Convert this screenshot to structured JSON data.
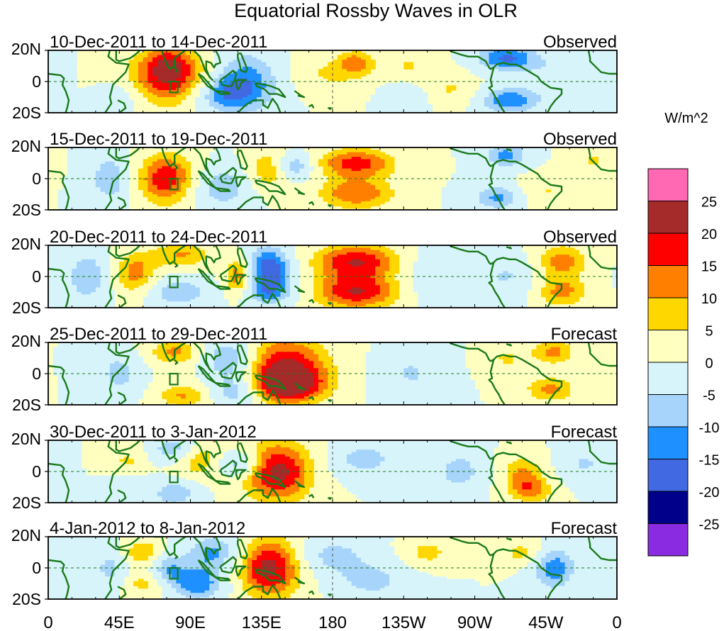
{
  "title": "Equatorial Rossby Waves in OLR",
  "units": "W/m^2",
  "latitude_labels": [
    "20N",
    "0",
    "20S"
  ],
  "longitude_labels": [
    "0",
    "45E",
    "90E",
    "135E",
    "180",
    "135W",
    "90W",
    "45W",
    "0"
  ],
  "panels": [
    {
      "date_range": "10-Dec-2011 to 14-Dec-2011",
      "status": "Observed"
    },
    {
      "date_range": "15-Dec-2011 to 19-Dec-2011",
      "status": "Observed"
    },
    {
      "date_range": "20-Dec-2011 to 24-Dec-2011",
      "status": "Observed"
    },
    {
      "date_range": "25-Dec-2011 to 29-Dec-2011",
      "status": "Forecast"
    },
    {
      "date_range": "30-Dec-2011 to 3-Jan-2012",
      "status": "Forecast"
    },
    {
      "date_range": "4-Jan-2012 to 8-Jan-2012",
      "status": "Forecast"
    }
  ],
  "colorbar": {
    "colors": [
      "#ff69b4",
      "#a52a2a",
      "#ff0000",
      "#ff7f00",
      "#ffd700",
      "#ffffc0",
      "#d8f4fb",
      "#a6d4fb",
      "#1e90ff",
      "#4169e1",
      "#00008b",
      "#8a2be2"
    ],
    "labels": [
      "25",
      "20",
      "15",
      "10",
      "5",
      "0",
      "-5",
      "-10",
      "-15",
      "-20",
      "-25"
    ]
  },
  "palette": {
    "p25": "#a52a2a",
    "p20": "#ff0000",
    "p15": "#ff7f00",
    "p10": "#ffd700",
    "p5": "#ffffc0",
    "n5": "#d8f4fb",
    "n10": "#a6d4fb",
    "n15": "#1e90ff",
    "n20": "#4169e1",
    "n25": "#00008b",
    "coast": "#1a7a1a",
    "box": "#1a7a1a",
    "equator": "#1a7a1a"
  },
  "blobs": [
    [
      {
        "lon": 80,
        "lat": 2,
        "rlon": 22,
        "rlat": 13,
        "v": 22
      },
      {
        "lon": 75,
        "lat": 12,
        "rlon": 10,
        "rlat": 8,
        "v": 10
      },
      {
        "lon": 122,
        "lat": 0,
        "rlon": 18,
        "rlat": 14,
        "v": -18
      },
      {
        "lon": 108,
        "lat": -8,
        "rlon": 14,
        "rlat": 8,
        "v": -12
      },
      {
        "lon": 175,
        "lat": 5,
        "rlon": 18,
        "rlat": 10,
        "v": 8
      },
      {
        "lon": 195,
        "lat": 12,
        "rlon": 8,
        "rlat": 6,
        "v": 13
      },
      {
        "lon": 228,
        "lat": 10,
        "rlon": 12,
        "rlat": 8,
        "v": 8
      },
      {
        "lon": 226,
        "lat": -10,
        "rlon": 10,
        "rlat": 8,
        "v": -8
      },
      {
        "lon": 255,
        "lat": -5,
        "rlon": 12,
        "rlat": 8,
        "v": 8
      },
      {
        "lon": 290,
        "lat": 15,
        "rlon": 14,
        "rlat": 6,
        "v": -18
      },
      {
        "lon": 292,
        "lat": -12,
        "rlon": 14,
        "rlat": 6,
        "v": -16
      },
      {
        "lon": 330,
        "lat": 5,
        "rlon": 20,
        "rlat": 10,
        "v": -7
      },
      {
        "lon": 45,
        "lat": -10,
        "rlon": 10,
        "rlat": 8,
        "v": -8
      }
    ],
    [
      {
        "lon": 75,
        "lat": 0,
        "rlon": 14,
        "rlat": 12,
        "v": 22
      },
      {
        "lon": 40,
        "lat": 0,
        "rlon": 10,
        "rlat": 12,
        "v": -12
      },
      {
        "lon": 110,
        "lat": -5,
        "rlon": 16,
        "rlat": 10,
        "v": -12
      },
      {
        "lon": 138,
        "lat": 5,
        "rlon": 10,
        "rlat": 10,
        "v": 13
      },
      {
        "lon": 156,
        "lat": 8,
        "rlon": 8,
        "rlat": 6,
        "v": -14
      },
      {
        "lon": 195,
        "lat": 10,
        "rlon": 18,
        "rlat": 7,
        "v": 20
      },
      {
        "lon": 195,
        "lat": -10,
        "rlon": 18,
        "rlat": 7,
        "v": 17
      },
      {
        "lon": 290,
        "lat": 15,
        "rlon": 10,
        "rlat": 6,
        "v": -14
      },
      {
        "lon": 285,
        "lat": -12,
        "rlon": 12,
        "rlat": 6,
        "v": -14
      },
      {
        "lon": 315,
        "lat": -8,
        "rlon": 14,
        "rlat": 8,
        "v": 8
      },
      {
        "lon": 345,
        "lat": 12,
        "rlon": 10,
        "rlat": 8,
        "v": 8
      }
    ],
    [
      {
        "lon": 55,
        "lat": 2,
        "rlon": 10,
        "rlat": 10,
        "v": 15
      },
      {
        "lon": 25,
        "lat": 0,
        "rlon": 10,
        "rlat": 12,
        "v": -12
      },
      {
        "lon": 85,
        "lat": 14,
        "rlon": 14,
        "rlat": 6,
        "v": 13
      },
      {
        "lon": 82,
        "lat": -10,
        "rlon": 14,
        "rlat": 7,
        "v": -12
      },
      {
        "lon": 120,
        "lat": 0,
        "rlon": 6,
        "rlat": 8,
        "v": 18
      },
      {
        "lon": 140,
        "lat": 5,
        "rlon": 10,
        "rlat": 10,
        "v": -22
      },
      {
        "lon": 140,
        "lat": -10,
        "rlon": 12,
        "rlat": 6,
        "v": -12
      },
      {
        "lon": 195,
        "lat": 10,
        "rlon": 20,
        "rlat": 8,
        "v": 22
      },
      {
        "lon": 195,
        "lat": -10,
        "rlon": 20,
        "rlat": 8,
        "v": 22
      },
      {
        "lon": 245,
        "lat": 0,
        "rlon": 14,
        "rlat": 12,
        "v": -8
      },
      {
        "lon": 325,
        "lat": 10,
        "rlon": 12,
        "rlat": 8,
        "v": 15
      },
      {
        "lon": 325,
        "lat": -10,
        "rlon": 12,
        "rlat": 7,
        "v": 14
      },
      {
        "lon": 290,
        "lat": 0,
        "rlon": 14,
        "rlat": 10,
        "v": -8
      }
    ],
    [
      {
        "lon": 150,
        "lat": 5,
        "rlon": 20,
        "rlat": 14,
        "v": 22
      },
      {
        "lon": 150,
        "lat": -8,
        "rlon": 18,
        "rlat": 8,
        "v": 20
      },
      {
        "lon": 80,
        "lat": 14,
        "rlon": 12,
        "rlat": 6,
        "v": 14
      },
      {
        "lon": 85,
        "lat": -14,
        "rlon": 12,
        "rlat": 6,
        "v": 13
      },
      {
        "lon": 115,
        "lat": 10,
        "rlon": 12,
        "rlat": 8,
        "v": -16
      },
      {
        "lon": 120,
        "lat": -10,
        "rlon": 12,
        "rlat": 8,
        "v": -16
      },
      {
        "lon": 320,
        "lat": 14,
        "rlon": 10,
        "rlat": 6,
        "v": 14
      },
      {
        "lon": 318,
        "lat": -10,
        "rlon": 12,
        "rlat": 6,
        "v": 14
      },
      {
        "lon": 45,
        "lat": 0,
        "rlon": 10,
        "rlat": 10,
        "v": -10
      },
      {
        "lon": 230,
        "lat": 0,
        "rlon": 14,
        "rlat": 12,
        "v": -8
      },
      {
        "lon": 290,
        "lat": 10,
        "rlon": 10,
        "rlat": 8,
        "v": 8
      }
    ],
    [
      {
        "lon": 145,
        "lat": 0,
        "rlon": 16,
        "rlat": 14,
        "v": 25
      },
      {
        "lon": 95,
        "lat": 8,
        "rlon": 12,
        "rlat": 8,
        "v": 13
      },
      {
        "lon": 120,
        "lat": 5,
        "rlon": 10,
        "rlat": 6,
        "v": -16
      },
      {
        "lon": 80,
        "lat": 14,
        "rlon": 10,
        "rlat": 6,
        "v": -14
      },
      {
        "lon": 80,
        "lat": -14,
        "rlon": 10,
        "rlat": 6,
        "v": -12
      },
      {
        "lon": 50,
        "lat": 5,
        "rlon": 8,
        "rlat": 8,
        "v": 10
      },
      {
        "lon": 50,
        "lat": -8,
        "rlon": 8,
        "rlat": 8,
        "v": -8
      },
      {
        "lon": 200,
        "lat": 8,
        "rlon": 16,
        "rlat": 8,
        "v": -10
      },
      {
        "lon": 260,
        "lat": 0,
        "rlon": 12,
        "rlat": 10,
        "v": -10
      },
      {
        "lon": 300,
        "lat": 0,
        "rlon": 10,
        "rlat": 8,
        "v": 12
      },
      {
        "lon": 305,
        "lat": -12,
        "rlon": 10,
        "rlat": 6,
        "v": 14
      },
      {
        "lon": 340,
        "lat": 5,
        "rlon": 12,
        "rlat": 8,
        "v": -8
      }
    ],
    [
      {
        "lon": 140,
        "lat": 0,
        "rlon": 14,
        "rlat": 14,
        "v": 25
      },
      {
        "lon": 105,
        "lat": 10,
        "rlon": 12,
        "rlat": 8,
        "v": -14
      },
      {
        "lon": 95,
        "lat": -10,
        "rlon": 12,
        "rlat": 8,
        "v": -16
      },
      {
        "lon": 60,
        "lat": 10,
        "rlon": 10,
        "rlat": 6,
        "v": 13
      },
      {
        "lon": 60,
        "lat": -10,
        "rlon": 10,
        "rlat": 6,
        "v": 10
      },
      {
        "lon": 75,
        "lat": 0,
        "rlon": 8,
        "rlat": 8,
        "v": -12
      },
      {
        "lon": 180,
        "lat": 8,
        "rlon": 16,
        "rlat": 8,
        "v": -10
      },
      {
        "lon": 205,
        "lat": -8,
        "rlon": 16,
        "rlat": 8,
        "v": -10
      },
      {
        "lon": 240,
        "lat": 10,
        "rlon": 10,
        "rlat": 6,
        "v": 10
      },
      {
        "lon": 320,
        "lat": 0,
        "rlon": 10,
        "rlat": 10,
        "v": -16
      },
      {
        "lon": 300,
        "lat": 10,
        "rlon": 10,
        "rlat": 6,
        "v": 10
      },
      {
        "lon": 40,
        "lat": 0,
        "rlon": 8,
        "rlat": 10,
        "v": -10
      }
    ]
  ]
}
